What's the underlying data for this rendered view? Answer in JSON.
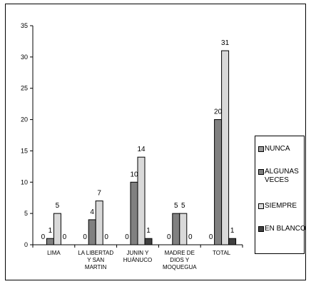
{
  "chart_data": {
    "type": "bar",
    "categories": [
      [
        "LIMA"
      ],
      [
        "LA LIBERTAD",
        "Y SAN",
        "MARTIN"
      ],
      [
        "JUNIN Y",
        "HUÁNUCO"
      ],
      [
        "MADRE DE",
        "DIOS Y",
        "MOQUEGUA"
      ],
      [
        "TOTAL"
      ]
    ],
    "series": [
      {
        "name": "NUNCA",
        "color": "#999999",
        "values": [
          0,
          0,
          0,
          0,
          0
        ]
      },
      {
        "name": "ALGUNAS VECES",
        "color": "#808080",
        "values": [
          1,
          4,
          10,
          5,
          20
        ]
      },
      {
        "name": "SIEMPRE",
        "color": "#d9d9d9",
        "values": [
          5,
          7,
          14,
          5,
          31
        ]
      },
      {
        "name": "EN BLANCO",
        "color": "#404040",
        "values": [
          0,
          0,
          1,
          0,
          1
        ]
      }
    ],
    "ylim": [
      0,
      35
    ],
    "yticks": [
      0,
      5,
      10,
      15,
      20,
      25,
      30,
      35
    ],
    "grid": false,
    "legend": "right"
  }
}
